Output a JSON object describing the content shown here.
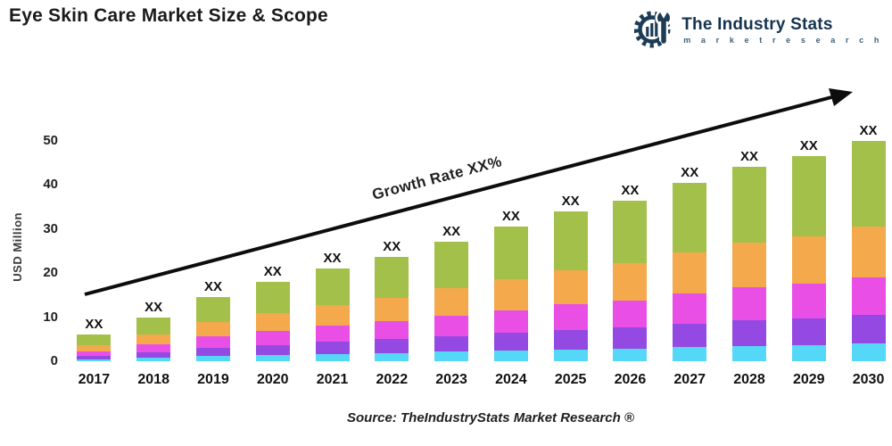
{
  "logo": {
    "name": "The Industry Stats",
    "tagline": "m a r k e t   r e s e a r c h",
    "color": "#16344f"
  },
  "footer": {
    "source": "Source: TheIndustryStats Market Research ®"
  },
  "chart_data": {
    "type": "bar",
    "stacked": true,
    "title": "Eye Skin Care Market Size & Scope",
    "xlabel": "",
    "ylabel": "USD Million",
    "ylim": [
      0,
      52
    ],
    "yticks": [
      0,
      10,
      20,
      30,
      40,
      50
    ],
    "grid": false,
    "legend": "none",
    "annotation": "Growth Rate XX%",
    "bar_value_label": "XX",
    "categories": [
      "2017",
      "2018",
      "2019",
      "2020",
      "2021",
      "2022",
      "2023",
      "2024",
      "2025",
      "2026",
      "2027",
      "2028",
      "2029",
      "2030"
    ],
    "series": [
      {
        "name": "cyan-segment",
        "color": "#55d8f8",
        "values": [
          0.5,
          0.8,
          1.2,
          1.4,
          1.7,
          1.9,
          2.2,
          2.4,
          2.7,
          2.9,
          3.2,
          3.5,
          3.7,
          4.0
        ]
      },
      {
        "name": "purple-segment",
        "color": "#9549e3",
        "values": [
          0.8,
          1.3,
          1.9,
          2.3,
          2.7,
          3.1,
          3.5,
          4.0,
          4.4,
          4.7,
          5.3,
          5.7,
          6.0,
          6.5
        ]
      },
      {
        "name": "magenta-segment",
        "color": "#e94fe5",
        "values": [
          1.0,
          1.7,
          2.5,
          3.1,
          3.6,
          4.0,
          4.6,
          5.2,
          5.8,
          6.2,
          6.9,
          7.5,
          7.9,
          8.5
        ]
      },
      {
        "name": "orange-segment",
        "color": "#f3a94c",
        "values": [
          1.4,
          2.3,
          3.3,
          4.1,
          4.8,
          5.4,
          6.2,
          7.0,
          7.8,
          8.4,
          9.3,
          10.1,
          10.7,
          11.5
        ]
      },
      {
        "name": "green-segment",
        "color": "#a3c14a",
        "values": [
          2.3,
          3.9,
          5.7,
          7.0,
          8.2,
          9.2,
          10.5,
          11.9,
          13.3,
          14.2,
          15.8,
          17.2,
          18.1,
          19.5
        ]
      }
    ],
    "totals": [
      6,
      10,
      14.5,
      18,
      21,
      23.5,
      27,
      30.5,
      34,
      36.5,
      40.5,
      44,
      46.5,
      50
    ]
  }
}
